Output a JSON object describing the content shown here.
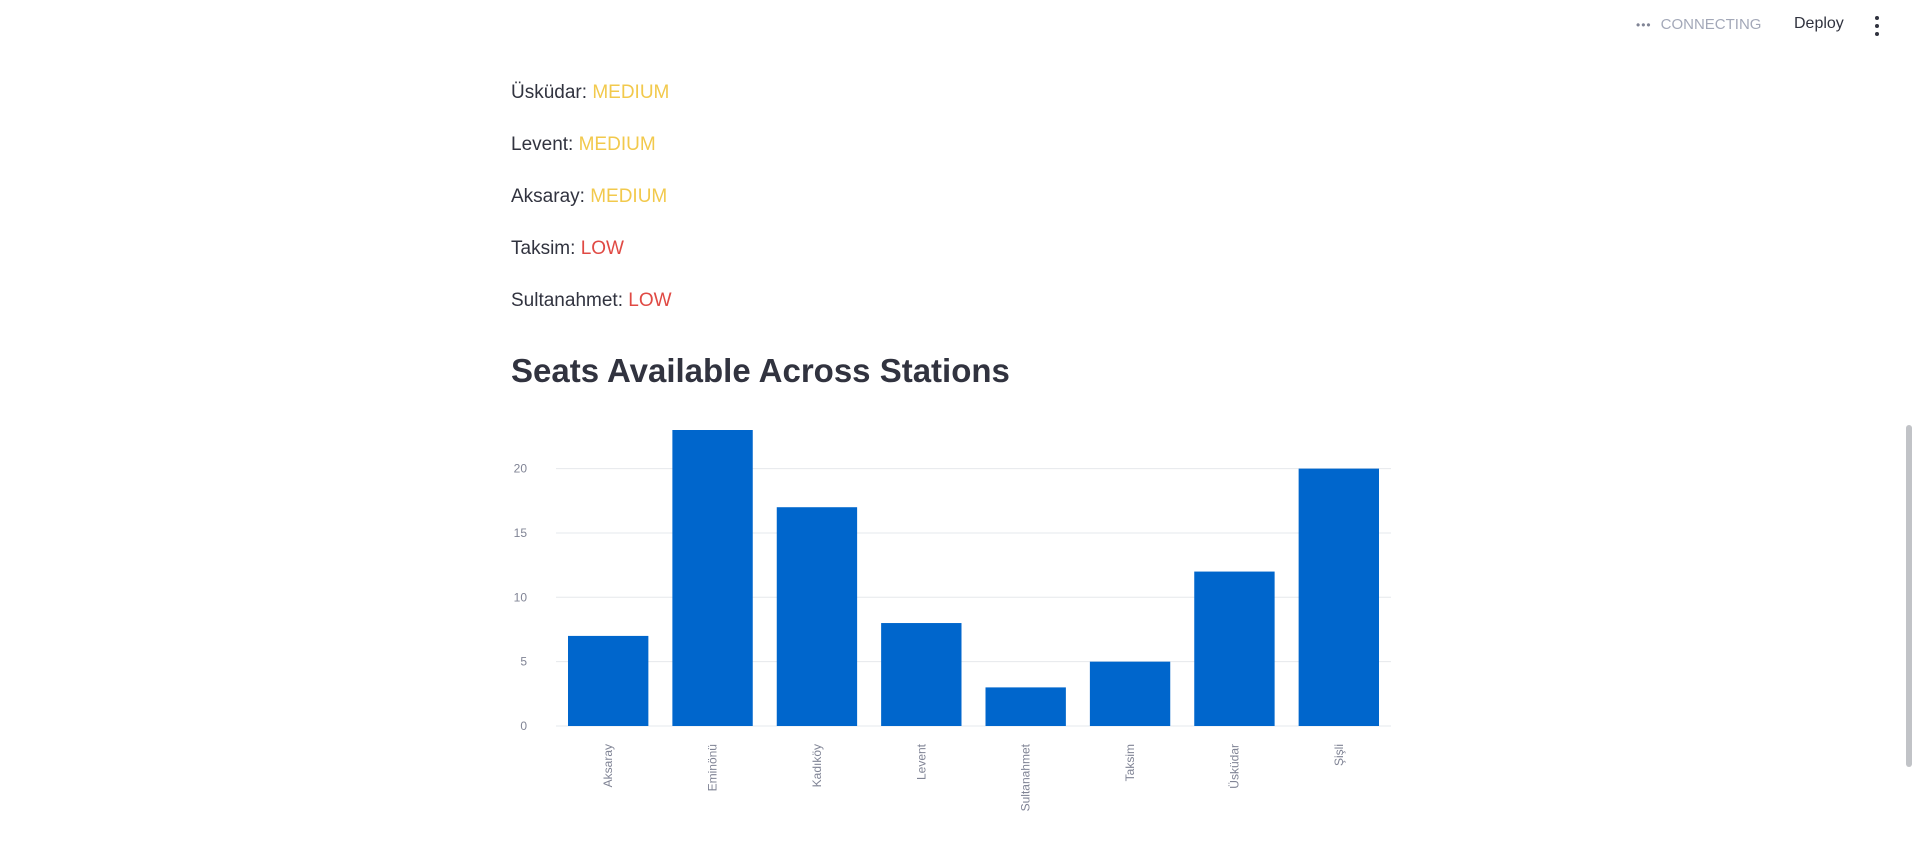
{
  "header": {
    "status_text": "CONNECTING",
    "deploy_label": "Deploy"
  },
  "stations": [
    {
      "name": "Üsküdar",
      "level": "MEDIUM"
    },
    {
      "name": "Levent",
      "level": "MEDIUM"
    },
    {
      "name": "Aksaray",
      "level": "MEDIUM"
    },
    {
      "name": "Taksim",
      "level": "LOW"
    },
    {
      "name": "Sultanahmet",
      "level": "LOW"
    }
  ],
  "section": {
    "title": "Seats Available Across Stations"
  },
  "colors": {
    "medium": "#f2c94c",
    "low": "#e04a44",
    "bar": "#0066cc"
  },
  "chart_data": {
    "type": "bar",
    "categories": [
      "Aksaray",
      "Eminönü",
      "Kadıköy",
      "Levent",
      "Sultanahmet",
      "Taksim",
      "Üsküdar",
      "Şişli"
    ],
    "values": [
      7,
      23,
      17,
      8,
      3,
      5,
      12,
      20
    ],
    "yticks": [
      0,
      5,
      10,
      15,
      20
    ],
    "ylim": [
      0,
      23
    ],
    "grid": true,
    "title": "",
    "xlabel": "",
    "ylabel": ""
  }
}
